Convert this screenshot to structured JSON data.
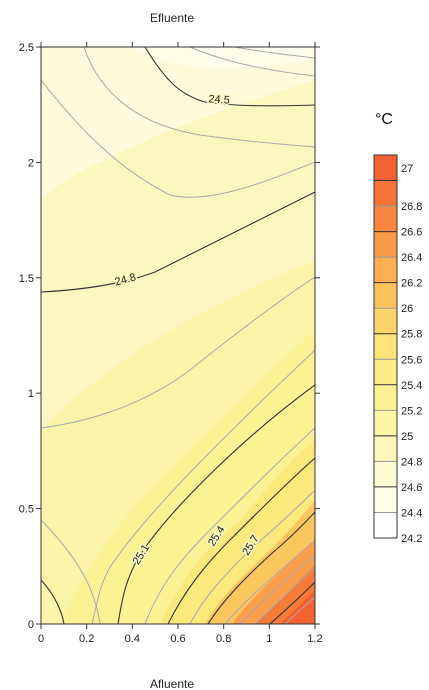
{
  "chart_data": {
    "type": "heatmap",
    "title": "Efluente",
    "xlabel": "Afluente",
    "ylabel": "",
    "xlim": [
      0,
      1.2
    ],
    "ylim": [
      0,
      2.5
    ],
    "xticks": [
      "0",
      "0.2",
      "0.4",
      "0.6",
      "0.8",
      "1",
      "1.2"
    ],
    "yticks": [
      "0",
      "0.5",
      "1",
      "1.5",
      "2",
      "2.5"
    ],
    "colorbar_title": "°C",
    "colorbar_levels": [
      "24.2",
      "24.4",
      "24.6",
      "24.8",
      "25",
      "25.2",
      "25.4",
      "25.6",
      "25.8",
      "26",
      "26.2",
      "26.4",
      "26.6",
      "26.8",
      "27"
    ],
    "colorbar_colors": [
      "#ffffff",
      "#fefde8",
      "#fdfbd2",
      "#fcf8bc",
      "#fbf5a8",
      "#fbf296",
      "#fcee86",
      "#fce37a",
      "#fcd46c",
      "#fcc25e",
      "#fbae52",
      "#fa9a48",
      "#f8863f",
      "#f67337",
      "#f46232"
    ],
    "contour_labels": [
      {
        "text": "24.5",
        "x": 0.78,
        "y": 2.27
      },
      {
        "text": "24.8",
        "x": 0.37,
        "y": 1.49
      },
      {
        "text": "25.1",
        "x": 0.44,
        "y": 0.3
      },
      {
        "text": "25.4",
        "x": 0.77,
        "y": 0.38
      },
      {
        "text": "25.7",
        "x": 0.92,
        "y": 0.34
      }
    ],
    "grid": false,
    "legend": "right"
  }
}
